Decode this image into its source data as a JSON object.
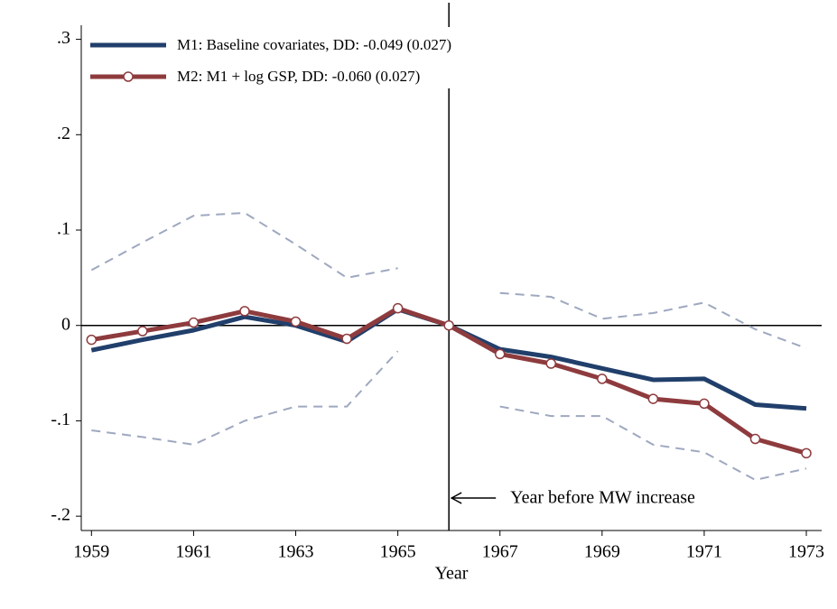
{
  "chart_data": {
    "type": "line",
    "x": [
      1959,
      1960,
      1961,
      1962,
      1963,
      1964,
      1965,
      1966,
      1967,
      1968,
      1969,
      1970,
      1971,
      1972,
      1973
    ],
    "series": [
      {
        "name": "M1: Baseline covariates, DD: -0.049 (0.027)",
        "color": "#213f6b",
        "values": [
          -0.026,
          -0.015,
          -0.005,
          0.009,
          0.0,
          -0.017,
          0.017,
          0,
          -0.025,
          -0.033,
          -0.045,
          -0.057,
          -0.056,
          -0.083,
          -0.087
        ]
      },
      {
        "name": "M2: M1 + log GSP, DD: -0.060 (0.027)",
        "color": "#8e3b3e",
        "marker": "circle",
        "values": [
          -0.015,
          -0.006,
          0.003,
          0.015,
          0.004,
          -0.014,
          0.018,
          0,
          -0.03,
          -0.04,
          -0.056,
          -0.077,
          -0.082,
          -0.119,
          -0.134
        ]
      }
    ],
    "confidence_band": {
      "color": "#9ea8bf",
      "upper": [
        0.058,
        0.087,
        0.115,
        0.118,
        0.085,
        0.05,
        0.06,
        null,
        0.034,
        0.03,
        0.007,
        0.013,
        0.024,
        -0.004,
        -0.024
      ],
      "lower": [
        -0.11,
        -0.117,
        -0.125,
        -0.1,
        -0.085,
        -0.085,
        -0.027,
        null,
        -0.085,
        -0.095,
        -0.095,
        -0.125,
        -0.133,
        -0.162,
        -0.15
      ]
    },
    "x_label": "Year",
    "xlim": [
      1958.8,
      1973.3
    ],
    "xticks": [
      1959,
      1961,
      1963,
      1965,
      1967,
      1969,
      1971,
      1973
    ],
    "ylim": [
      -0.215,
      0.31
    ],
    "yticks": [
      {
        "value": 0.3,
        "label": ".3"
      },
      {
        "value": 0.2,
        "label": ".2"
      },
      {
        "value": 0.1,
        "label": ".1"
      },
      0,
      {
        "value": -0.1,
        "label": "-.1"
      },
      {
        "value": -0.2,
        "label": "-.2"
      }
    ],
    "hline": 0,
    "vline": 1966,
    "annotation": "Year before MW increase",
    "legend": "top-left"
  }
}
